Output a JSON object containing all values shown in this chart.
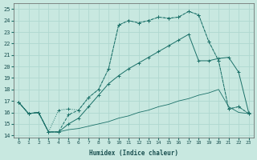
{
  "xlabel": "Humidex (Indice chaleur)",
  "bg_color": "#c8e8e0",
  "grid_color": "#b0d8d0",
  "line_color": "#1a7068",
  "xlim": [
    -0.5,
    23.5
  ],
  "ylim": [
    13.8,
    25.5
  ],
  "xticks": [
    0,
    1,
    2,
    3,
    4,
    5,
    6,
    7,
    8,
    9,
    10,
    11,
    12,
    13,
    14,
    15,
    16,
    17,
    18,
    19,
    20,
    21,
    22,
    23
  ],
  "yticks": [
    14,
    15,
    16,
    17,
    18,
    19,
    20,
    21,
    22,
    23,
    24,
    25
  ],
  "line1_x": [
    0,
    1,
    2,
    3,
    4,
    5,
    6,
    7,
    8,
    9,
    10,
    11,
    12,
    13,
    14,
    15,
    16,
    17,
    18,
    19,
    20,
    21,
    22,
    23
  ],
  "line1_y": [
    16.9,
    15.9,
    16.0,
    14.3,
    16.2,
    16.3,
    16.2,
    17.3,
    18.0,
    19.8,
    23.6,
    24.0,
    23.8,
    24.0,
    24.3,
    24.2,
    24.3,
    24.8,
    24.5,
    22.2,
    20.5,
    16.3,
    16.5,
    15.9
  ],
  "line2_x": [
    0,
    1,
    2,
    3,
    4,
    5,
    6,
    7,
    8,
    9,
    10,
    11,
    12,
    13,
    14,
    15,
    16,
    17,
    18,
    19,
    20,
    21,
    22,
    23
  ],
  "line2_y": [
    16.9,
    15.9,
    16.0,
    14.3,
    14.3,
    15.8,
    16.2,
    17.3,
    18.0,
    19.8,
    23.6,
    24.0,
    23.8,
    24.0,
    24.3,
    24.2,
    24.3,
    24.8,
    24.5,
    22.2,
    20.5,
    16.3,
    16.5,
    15.9
  ],
  "line3_x": [
    0,
    1,
    2,
    3,
    4,
    5,
    6,
    7,
    8,
    9,
    10,
    11,
    12,
    13,
    14,
    15,
    16,
    17,
    18,
    19,
    20,
    21,
    22,
    23
  ],
  "line3_y": [
    16.9,
    15.9,
    16.0,
    14.3,
    14.3,
    15.0,
    15.5,
    16.5,
    17.5,
    18.5,
    19.2,
    19.8,
    20.3,
    20.8,
    21.3,
    21.8,
    22.3,
    22.8,
    20.5,
    20.5,
    20.7,
    20.8,
    19.5,
    16.0
  ],
  "line4_x": [
    0,
    1,
    2,
    3,
    4,
    5,
    6,
    7,
    8,
    9,
    10,
    11,
    12,
    13,
    14,
    15,
    16,
    17,
    18,
    19,
    20,
    21,
    22,
    23
  ],
  "line4_y": [
    16.9,
    15.9,
    16.0,
    14.3,
    14.3,
    14.5,
    14.6,
    14.8,
    15.0,
    15.2,
    15.5,
    15.7,
    16.0,
    16.2,
    16.5,
    16.7,
    17.0,
    17.2,
    17.5,
    17.7,
    18.0,
    16.5,
    16.0,
    15.9
  ]
}
